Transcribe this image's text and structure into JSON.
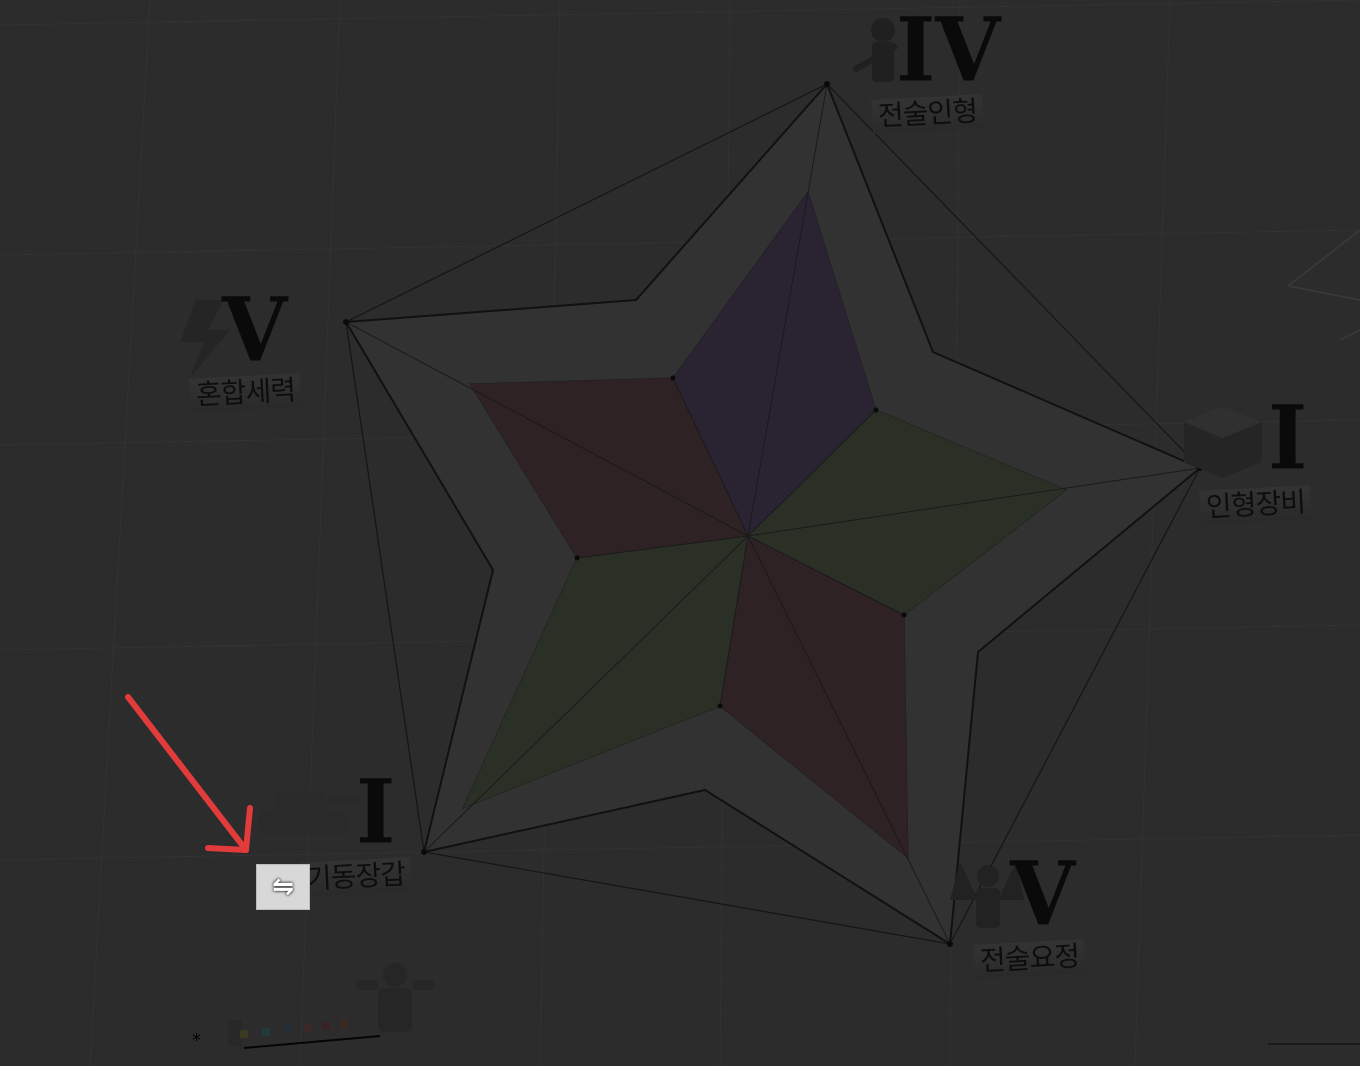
{
  "axes": [
    {
      "grade": "IV",
      "label": "전술인형",
      "icon": "tdoll-rifle-icon"
    },
    {
      "grade": "I",
      "label": "인형장비",
      "icon": "equipment-box-icon"
    },
    {
      "grade": "V",
      "label": "전술요정",
      "icon": "fairy-icon"
    },
    {
      "grade": "I",
      "label": "기동장갑",
      "icon": "tank-icon"
    },
    {
      "grade": "V",
      "label": "혼합세력",
      "icon": "lightning-icon"
    }
  ],
  "swap_button": {
    "label": "⇋",
    "icon": "swap-arrows-icon"
  },
  "footnote_mark": "*",
  "colors": {
    "background": "#2c2c2c",
    "purple_petal": "#2a2432",
    "green_petal": "#2a3026",
    "red_petal": "#2e2224",
    "annotation_arrow": "#e23b3b"
  }
}
